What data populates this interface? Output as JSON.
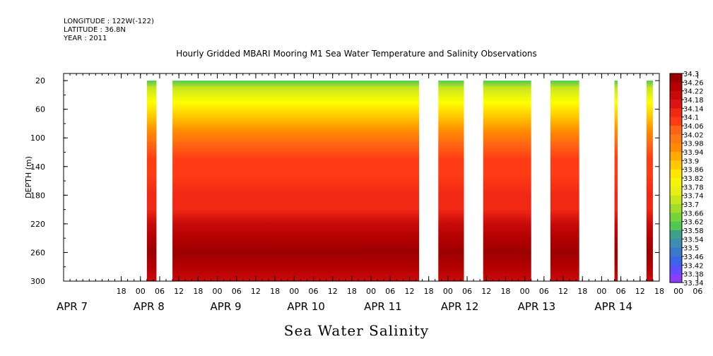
{
  "header": {
    "longitude": "LONGITUDE : 122W(-122)",
    "latitude": "LATITUDE : 36.8N",
    "year": "YEAR : 2011"
  },
  "title": "Hourly Gridded MBARI Mooring M1 Sea Water Temperature and Salinity Observations",
  "variable_label": "Sea Water Salinity",
  "colors": {
    "colorbar": [
      "#a000ff",
      "#8a3cff",
      "#5a50ff",
      "#3c64e6",
      "#3c78c8",
      "#3c8cb4",
      "#3ca08c",
      "#3cb46e",
      "#50c850",
      "#78d23c",
      "#a0dc28",
      "#c8e61e",
      "#e6f014",
      "#f5f50a",
      "#ffff00",
      "#ffe600",
      "#ffc800",
      "#ffaa00",
      "#ff8c00",
      "#ff7814",
      "#ff6414",
      "#ff5014",
      "#ff3c14",
      "#f02814",
      "#dc1414",
      "#c80a0a",
      "#b40000",
      "#9b0000",
      "#800000"
    ]
  },
  "chart_data": {
    "type": "heatmap",
    "title": "Hourly Gridded MBARI Mooring M1 Sea Water Temperature and Salinity Observations",
    "ylabel": "DEPTH (m)",
    "xlabel": "",
    "y_range": [
      300,
      10
    ],
    "y_ticks": [
      20,
      60,
      100,
      140,
      180,
      220,
      260,
      300
    ],
    "x_range_hours": [
      0,
      186
    ],
    "x_tick_labels": [
      "18",
      "00",
      "06",
      "12",
      "18",
      "00",
      "06",
      "12",
      "18",
      "00",
      "06",
      "12",
      "18",
      "00",
      "06",
      "12",
      "18",
      "00",
      "06",
      "12",
      "18",
      "00",
      "06",
      "12",
      "18",
      "00",
      "06",
      "12",
      "18",
      "00",
      "06",
      "12"
    ],
    "x_date_labels": [
      "APR  7",
      "APR  8",
      "APR  9",
      "APR 10",
      "APR 11",
      "APR 12",
      "APR 13",
      "APR 14"
    ],
    "data_segments": [
      {
        "start": "2011-04-08 02:00",
        "end": "2011-04-08 05:00"
      },
      {
        "start": "2011-04-08 10:00",
        "end": "2011-04-11 15:00"
      },
      {
        "start": "2011-04-11 21:00",
        "end": "2011-04-12 05:00"
      },
      {
        "start": "2011-04-12 11:00",
        "end": "2011-04-13 02:00"
      },
      {
        "start": "2011-04-13 08:00",
        "end": "2011-04-13 17:00"
      },
      {
        "start": "2011-04-14 04:00",
        "end": "2011-04-14 05:00"
      },
      {
        "start": "2011-04-14 14:00",
        "end": "2011-04-14 16:00"
      }
    ],
    "depth_profile": [
      {
        "depth": 20,
        "salinity": 33.6
      },
      {
        "depth": 30,
        "salinity": 33.7
      },
      {
        "depth": 50,
        "salinity": 33.82
      },
      {
        "depth": 70,
        "salinity": 33.9
      },
      {
        "depth": 90,
        "salinity": 33.96
      },
      {
        "depth": 110,
        "salinity": 34.02
      },
      {
        "depth": 130,
        "salinity": 34.08
      },
      {
        "depth": 150,
        "salinity": 34.1
      },
      {
        "depth": 180,
        "salinity": 34.12
      },
      {
        "depth": 200,
        "salinity": 34.14
      },
      {
        "depth": 220,
        "salinity": 34.2
      },
      {
        "depth": 240,
        "salinity": 34.24
      },
      {
        "depth": 260,
        "salinity": 34.26
      },
      {
        "depth": 280,
        "salinity": 34.22
      },
      {
        "depth": 300,
        "salinity": 34.2
      }
    ],
    "colorbar_levels": [
      "34.3",
      "34.26",
      "34.22",
      "34.18",
      "34.14",
      "34.1",
      "34.06",
      "34.02",
      "33.98",
      "33.94",
      "33.9",
      "33.86",
      "33.82",
      "33.78",
      "33.74",
      "33.7",
      "33.66",
      "33.62",
      "33.58",
      "33.54",
      "33.5",
      "33.46",
      "33.42",
      "33.38",
      "33.34"
    ],
    "grid": false
  }
}
